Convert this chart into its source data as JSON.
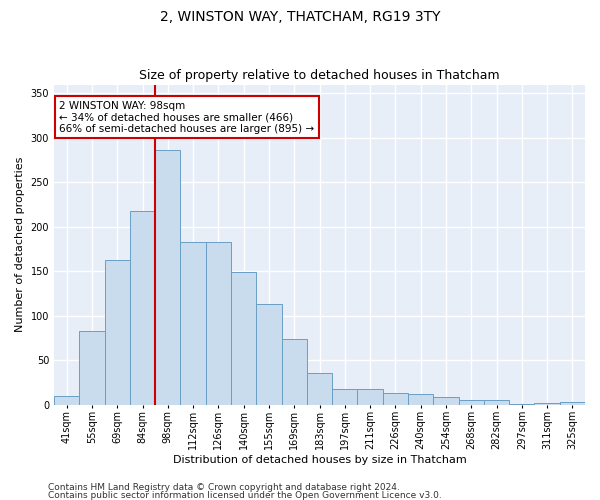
{
  "title": "2, WINSTON WAY, THATCHAM, RG19 3TY",
  "subtitle": "Size of property relative to detached houses in Thatcham",
  "xlabel": "Distribution of detached houses by size in Thatcham",
  "ylabel": "Number of detached properties",
  "categories": [
    "41sqm",
    "55sqm",
    "69sqm",
    "84sqm",
    "98sqm",
    "112sqm",
    "126sqm",
    "140sqm",
    "155sqm",
    "169sqm",
    "183sqm",
    "197sqm",
    "211sqm",
    "226sqm",
    "240sqm",
    "254sqm",
    "268sqm",
    "282sqm",
    "297sqm",
    "311sqm",
    "325sqm"
  ],
  "values": [
    10,
    83,
    163,
    218,
    286,
    183,
    183,
    149,
    113,
    74,
    35,
    17,
    17,
    13,
    12,
    8,
    5,
    5,
    1,
    2,
    3
  ],
  "bar_color": "#c9dcee",
  "bar_edge_color": "#6a9ec5",
  "marker_line_color": "#cc0000",
  "annotation_line1": "2 WINSTON WAY: 98sqm",
  "annotation_line2": "← 34% of detached houses are smaller (466)",
  "annotation_line3": "66% of semi-detached houses are larger (895) →",
  "annotation_box_color": "#cc0000",
  "ylim": [
    0,
    360
  ],
  "yticks": [
    0,
    50,
    100,
    150,
    200,
    250,
    300,
    350
  ],
  "footer1": "Contains HM Land Registry data © Crown copyright and database right 2024.",
  "footer2": "Contains public sector information licensed under the Open Government Licence v3.0.",
  "background_color": "#e8eef8",
  "grid_color": "#ffffff",
  "title_fontsize": 10,
  "subtitle_fontsize": 9,
  "axis_label_fontsize": 8,
  "tick_fontsize": 7,
  "footer_fontsize": 6.5,
  "annotation_fontsize": 7.5
}
